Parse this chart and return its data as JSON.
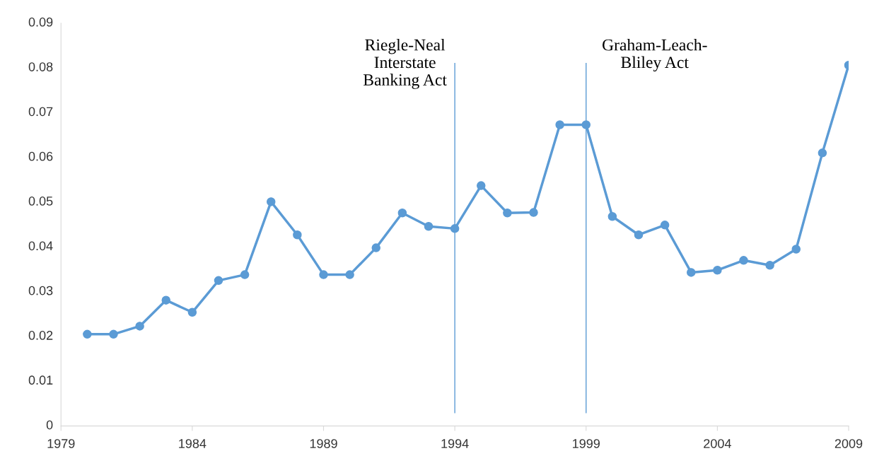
{
  "chart_data": {
    "type": "line",
    "x": [
      1980,
      1981,
      1982,
      1983,
      1984,
      1985,
      1986,
      1987,
      1988,
      1989,
      1990,
      1991,
      1992,
      1993,
      1994,
      1995,
      1996,
      1997,
      1998,
      1999,
      2000,
      2001,
      2002,
      2003,
      2004,
      2005,
      2006,
      2007,
      2008,
      2009
    ],
    "series": [
      {
        "color": "#5b9bd5",
        "values": [
          0.0205,
          0.0205,
          0.0223,
          0.0281,
          0.0254,
          0.0325,
          0.0338,
          0.0501,
          0.0427,
          0.0338,
          0.0338,
          0.0398,
          0.0476,
          0.0446,
          0.0441,
          0.0537,
          0.0476,
          0.0477,
          0.0673,
          0.0673,
          0.0468,
          0.0427,
          0.0449,
          0.0343,
          0.0348,
          0.037,
          0.0359,
          0.0395,
          0.061,
          0.0806
        ]
      }
    ],
    "xlim": [
      1979,
      2009
    ],
    "xticks": [
      1979,
      1984,
      1989,
      1994,
      1999,
      2004,
      2009
    ],
    "ylim": [
      0,
      0.09
    ],
    "yticks": [
      0,
      0.01,
      0.02,
      0.03,
      0.04,
      0.05,
      0.06,
      0.07,
      0.08,
      0.09
    ],
    "marker": "circle",
    "line_style": "solid",
    "grid": false,
    "ref_lines": [
      {
        "axis": "x",
        "value": 1994,
        "label": "Riegle-Neal\nInterstate\nBanking Act",
        "color": "#5b9bd5"
      },
      {
        "axis": "x",
        "value": 1999,
        "label": "Graham-Leach-\nBliley Act",
        "color": "#5b9bd5"
      }
    ]
  }
}
